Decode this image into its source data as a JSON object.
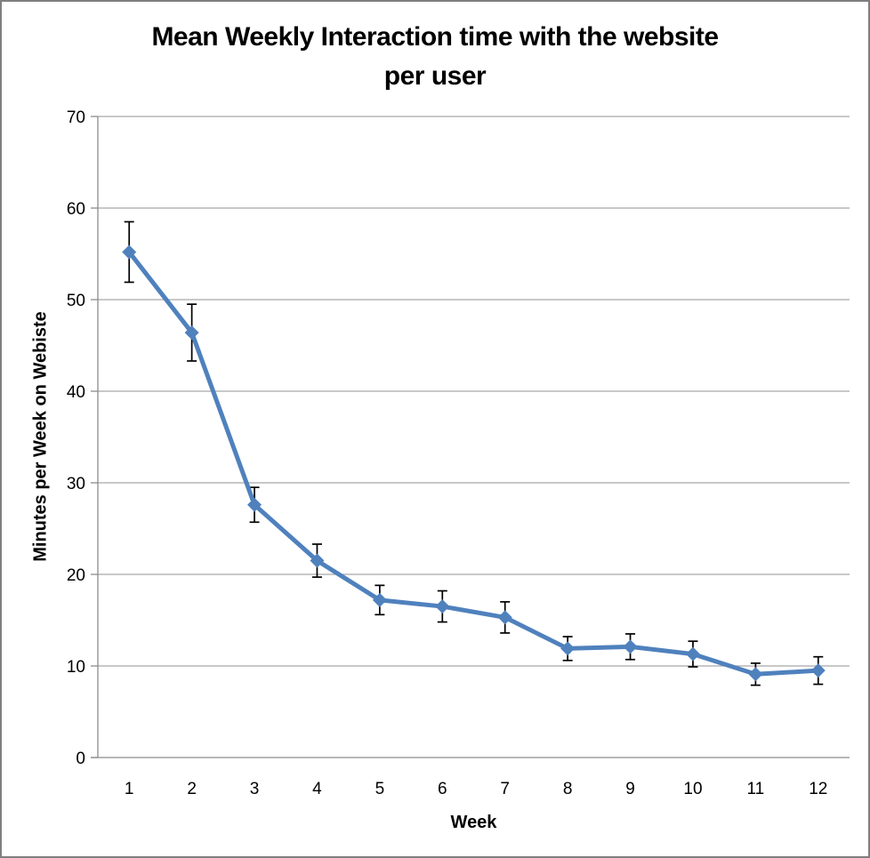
{
  "window": {
    "background_color": "#FFFFFF",
    "border_color": "#7F7F7F"
  },
  "chart_data": {
    "type": "line",
    "title": "Mean Weekly Interaction time with the website per user",
    "title_lines": [
      "Mean Weekly Interaction time with the website",
      "per user"
    ],
    "xlabel": "Week",
    "ylabel": "Minutes per Week on Webiste",
    "categories": [
      "1",
      "2",
      "3",
      "4",
      "5",
      "6",
      "7",
      "8",
      "9",
      "10",
      "11",
      "12"
    ],
    "series": [
      {
        "values": [
          55.2,
          46.4,
          27.6,
          21.5,
          17.2,
          16.5,
          15.3,
          11.9,
          12.1,
          11.3,
          9.1,
          9.5
        ],
        "errors": [
          3.3,
          3.1,
          1.9,
          1.8,
          1.6,
          1.7,
          1.7,
          1.3,
          1.4,
          1.4,
          1.2,
          1.5
        ]
      }
    ],
    "ylim": [
      0,
      70
    ],
    "ytick_interval": 10,
    "yticks": [
      "0",
      "10",
      "20",
      "30",
      "40",
      "50",
      "60",
      "70"
    ],
    "grid": true,
    "legend_position": "none",
    "marker": "diamond",
    "colors": {
      "series": "#4F81BD",
      "error_bar": "#000000",
      "gridline": "#A6A6A6",
      "axis": "#8C8C8C",
      "text": "#000000"
    }
  }
}
